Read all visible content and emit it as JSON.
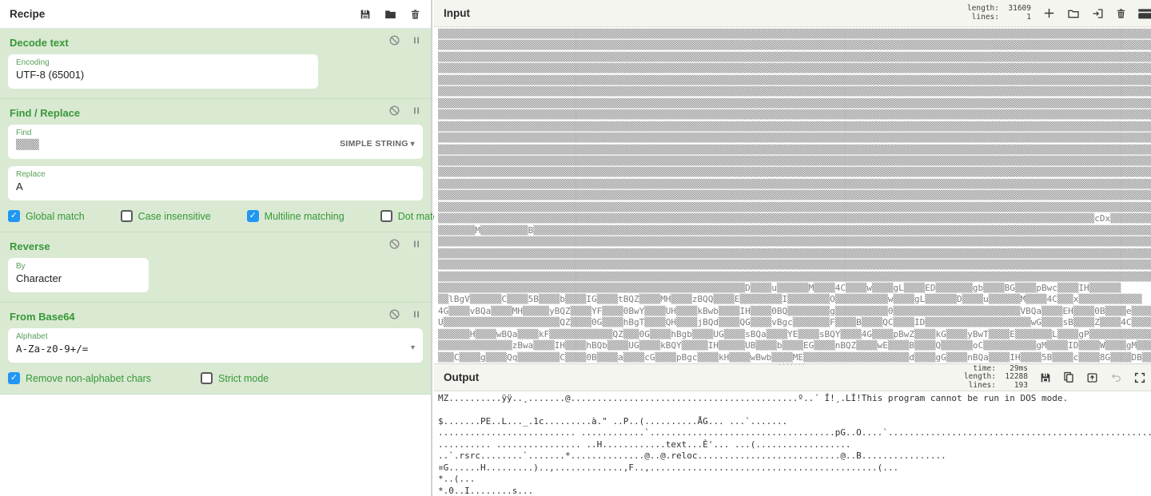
{
  "colors": {
    "accent_green": "#389838",
    "checkbox_blue": "#2196f3",
    "pane_green_bg": "#d9e9d2"
  },
  "recipe": {
    "title": "Recipe",
    "ops": [
      {
        "title": "Decode text",
        "fields": [
          {
            "label": "Encoding",
            "value": "UTF-8 (65001)"
          }
        ]
      },
      {
        "title": "Find / Replace",
        "find_label": "Find",
        "find_value": "▒▒▒▒",
        "find_type": "SIMPLE STRING",
        "find_type_caret": "▾",
        "replace_label": "Replace",
        "replace_value": "A",
        "checkboxes": [
          {
            "label": "Global match",
            "checked": true
          },
          {
            "label": "Case insensitive",
            "checked": false
          },
          {
            "label": "Multiline matching",
            "checked": true
          },
          {
            "label": "Dot matches all",
            "checked": false
          }
        ]
      },
      {
        "title": "Reverse",
        "fields": [
          {
            "label": "By",
            "value": "Character"
          }
        ]
      },
      {
        "title": "From Base64",
        "fields": [
          {
            "label": "Alphabet",
            "value": "A-Za-z0-9+/="
          }
        ],
        "caret": "▾",
        "checkboxes": [
          {
            "label": "Remove non-alphabet chars",
            "checked": true
          },
          {
            "label": "Strict mode",
            "checked": false
          }
        ]
      }
    ]
  },
  "input": {
    "title": "Input",
    "details": [
      [
        "length:",
        "31609"
      ],
      [
        "lines:",
        "1"
      ]
    ],
    "lines": [
      [
        "#135"
      ],
      [
        "#135"
      ],
      [
        "#135"
      ],
      [
        "#135"
      ],
      [
        "#135"
      ],
      [
        "#135"
      ],
      [
        "#135"
      ],
      [
        "#135"
      ],
      [
        "#135"
      ],
      [
        "#135"
      ],
      [
        "#135"
      ],
      [
        "#135"
      ],
      [
        "#135"
      ],
      [
        "#135"
      ],
      [
        "#135"
      ],
      [
        "#135"
      ],
      [
        "#124",
        "cDx",
        "#8"
      ],
      [
        "#7",
        "M",
        "#9",
        "B",
        "#117"
      ],
      [
        "#135"
      ],
      [
        "#135"
      ],
      [
        "#135"
      ],
      [
        "#135"
      ],
      [
        "#58",
        "D",
        "#4",
        "u",
        "#6",
        "M",
        "#4",
        "4C",
        "#4",
        "w",
        "#4",
        "gL",
        "#4",
        "ED",
        "#7",
        "gb",
        "#4",
        "BG",
        "#4",
        "pBwc",
        "#4",
        "IH",
        "#6"
      ],
      [
        "#2",
        "lBgV",
        "#6",
        "C",
        "#4",
        "5B",
        "#4",
        "b",
        "#4",
        "IG",
        "#4",
        "tBQZ",
        "#4",
        "MH",
        "#4",
        "zBQQ",
        "#4",
        "E",
        "#8",
        "I",
        "#8",
        "O",
        "#10",
        "w",
        "#4",
        "gL",
        "#6",
        "D",
        "#4",
        "u",
        "#6",
        "M",
        "#4",
        "4C",
        "#3",
        "x",
        "#12"
      ],
      [
        "4G",
        "#4",
        "vBQa",
        "#4",
        "MH",
        "#5",
        "yBQZ",
        "#4",
        "YF",
        "#4",
        "0BwY",
        "#4",
        "UH",
        "#4",
        "kBwb",
        "#4",
        "IH",
        "#4",
        "0BQ",
        "#8",
        "g",
        "#10",
        "0",
        "#24",
        "VBQa",
        "#4",
        "EH",
        "#4",
        "0B",
        "#4",
        "e",
        "#4",
        "MH",
        "#4",
        "QB"
      ],
      [
        "U",
        "#22",
        "QZ",
        "#4",
        "0G",
        "#4",
        "hBgT",
        "#4",
        "QH",
        "#4",
        "jBQd",
        "#4",
        "QG",
        "#4",
        "vBgc",
        "#7",
        "F",
        "#4",
        "B",
        "#4",
        "QC",
        "#4",
        "ID",
        "#20",
        "wG",
        "#4",
        "sB",
        "#4",
        "Z",
        "#4",
        "4C",
        "#4",
        "CB",
        "#4",
        "S"
      ],
      [
        "#6",
        "H",
        "#4",
        "wBQa",
        "#4",
        "kF",
        "#12",
        "QZ",
        "#3",
        "0G",
        "#4",
        "hBgb",
        "#4",
        "UG",
        "#4",
        "sBQa",
        "#4",
        "YE",
        "#4",
        "sBQY",
        "#4",
        "4G",
        "#4",
        "pBwZ",
        "#4",
        "kG",
        "#4",
        "yBwT",
        "#4",
        "E",
        "#7",
        "L",
        "#4",
        "gP",
        "#18"
      ],
      [
        "#14",
        "zBwa",
        "#4",
        "IH",
        "#4",
        "hBQb",
        "#4",
        "UG",
        "#4",
        "kBQY",
        "#5",
        "IH",
        "#5",
        "UB",
        "#4",
        "b",
        "#4",
        "EG",
        "#4",
        "nBQZ",
        "#4",
        "wE",
        "#4",
        "B",
        "#4",
        "Q",
        "#6",
        "oC",
        "#10",
        "gM",
        "#4",
        "ID",
        "#4",
        "W",
        "#4",
        "gM",
        "#4"
      ],
      [
        "#3",
        "C",
        "#4",
        "g",
        "#4",
        "Qq",
        "#8",
        "C",
        "#4",
        "0B",
        "#4",
        "a",
        "#4",
        "cG",
        "#4",
        "pBgc",
        "#4",
        "kH",
        "#4",
        "wBwb",
        "#4",
        "ME",
        "#20",
        "d",
        "#4",
        "gG",
        "#4",
        "nBQa",
        "#4",
        "IH",
        "#4",
        "5B",
        "#4",
        "c",
        "#4",
        "8G",
        "#4",
        "DB",
        "#4",
        "b",
        "#4",
        "EG",
        "#4",
        "nBQ"
      ]
    ]
  },
  "output": {
    "title": "Output",
    "details": [
      [
        "time:",
        "29ms"
      ],
      [
        "length:",
        "12288"
      ],
      [
        "lines:",
        "193"
      ]
    ],
    "lines": [
      "MZ..........ÿÿ..¸.......@...........................................º..´ Í!¸.LÍ!This program cannot be run in DOS mode.",
      "",
      "$.......PE..L..._.1c.........à.\" ..P..(..........ÅG... ...`.......",
      ".......................... ............`...................................pG..O....`..........................................................................................................................",
      ".......... ................ ..H............text...È'... ...(..................",
      "..`.rsrc........`.......*..............@..@.reloc...........................@..B................",
      "¤G......H.........)..,.............,F..,...........................................(...",
      "*..(...",
      "*.0..I........s...",
      "................,.............."
    ]
  }
}
